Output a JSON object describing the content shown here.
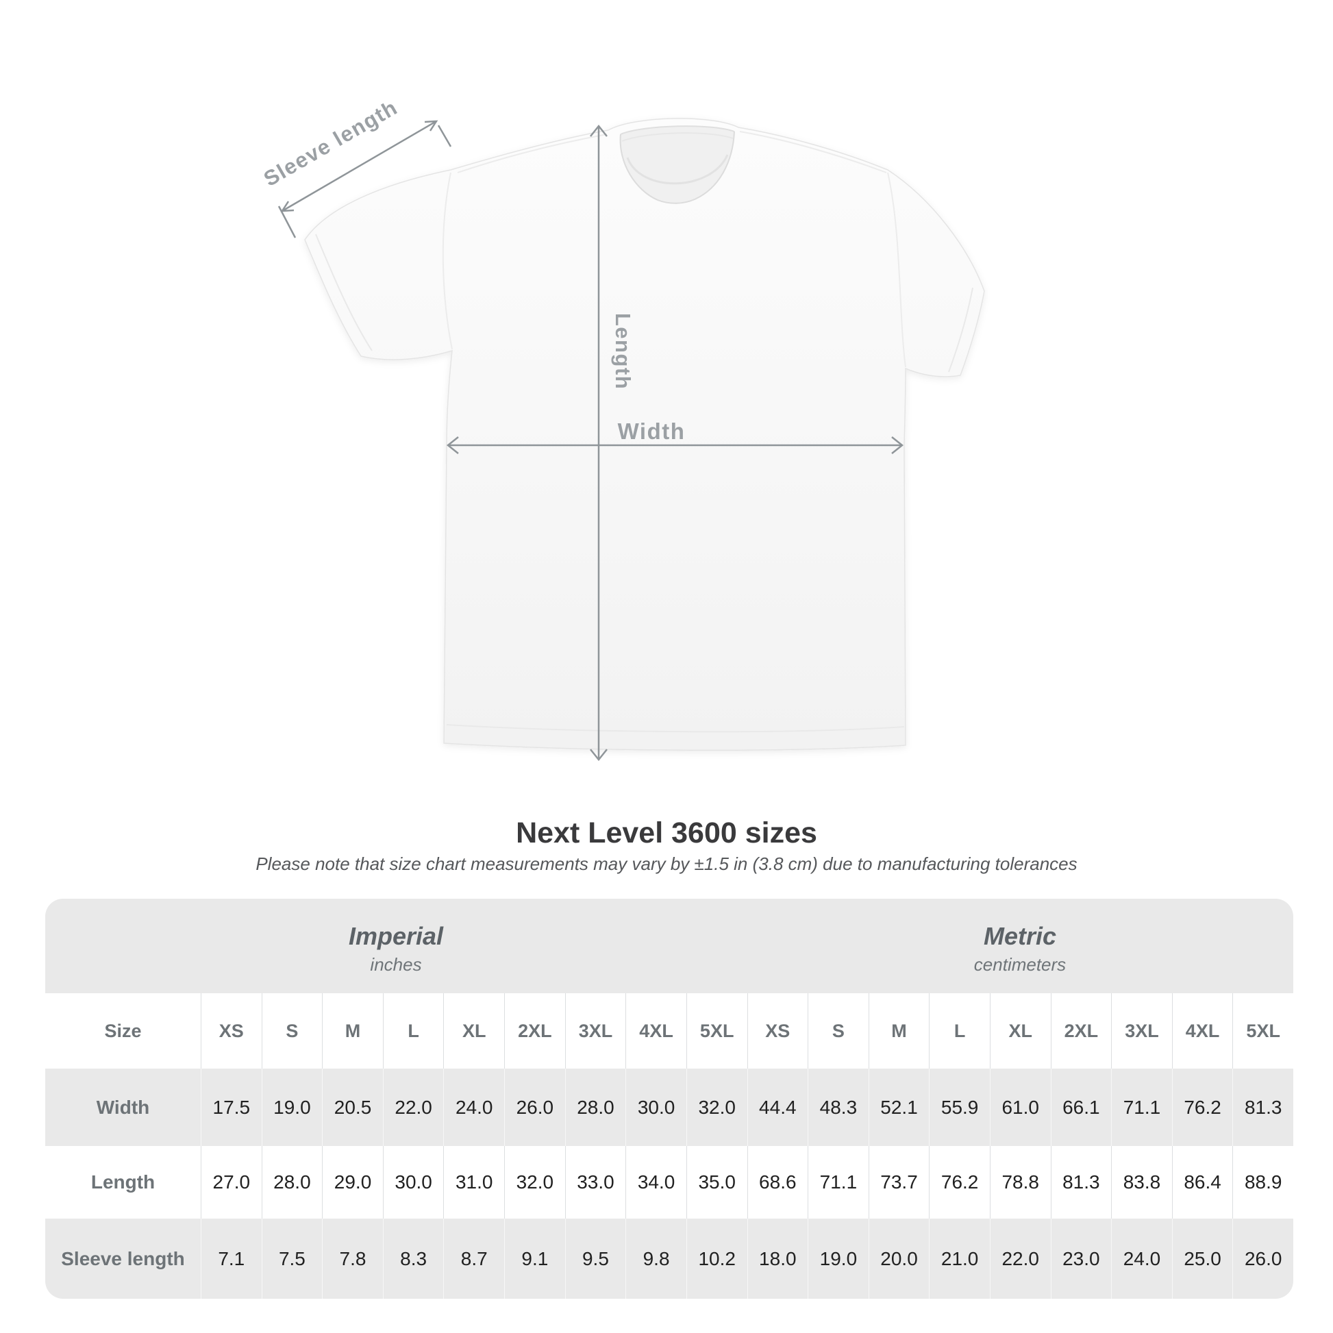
{
  "diagram": {
    "labels": {
      "sleeve_length": "Sleeve length",
      "length": "Length",
      "width": "Width"
    }
  },
  "title": "Next Level 3600 sizes",
  "subtitle": "Please note that size chart measurements may vary by ±1.5 in (3.8 cm) due to manufacturing tolerances",
  "size_chart": {
    "unit_groups": [
      {
        "label": "Imperial",
        "sublabel": "inches"
      },
      {
        "label": "Metric",
        "sublabel": "centimeters"
      }
    ],
    "header": {
      "row_label": "Size",
      "imperial_sizes": [
        "XS",
        "S",
        "M",
        "L",
        "XL",
        "2XL",
        "3XL",
        "4XL",
        "5XL"
      ],
      "metric_sizes": [
        "XS",
        "S",
        "M",
        "L",
        "XL",
        "2XL",
        "3XL",
        "4XL",
        "5XL"
      ]
    },
    "rows": [
      {
        "label": "Width",
        "imperial": [
          "17.5",
          "19.0",
          "20.5",
          "22.0",
          "24.0",
          "26.0",
          "28.0",
          "30.0",
          "32.0"
        ],
        "metric": [
          "44.4",
          "48.3",
          "52.1",
          "55.9",
          "61.0",
          "66.1",
          "71.1",
          "76.2",
          "81.3"
        ]
      },
      {
        "label": "Length",
        "imperial": [
          "27.0",
          "28.0",
          "29.0",
          "30.0",
          "31.0",
          "32.0",
          "33.0",
          "34.0",
          "35.0"
        ],
        "metric": [
          "68.6",
          "71.1",
          "73.7",
          "76.2",
          "78.8",
          "81.3",
          "83.8",
          "86.4",
          "88.9"
        ]
      },
      {
        "label": "Sleeve length",
        "imperial": [
          "7.1",
          "7.5",
          "7.8",
          "8.3",
          "8.7",
          "9.1",
          "9.5",
          "9.8",
          "10.2"
        ],
        "metric": [
          "18.0",
          "19.0",
          "20.0",
          "21.0",
          "22.0",
          "23.0",
          "24.0",
          "25.0",
          "26.0"
        ]
      }
    ]
  },
  "chart_data": {
    "type": "table",
    "title": "Next Level 3600 sizes",
    "columns": [
      "XS",
      "S",
      "M",
      "L",
      "XL",
      "2XL",
      "3XL",
      "4XL",
      "5XL"
    ],
    "series": [
      {
        "name": "Width (in)",
        "values": [
          17.5,
          19.0,
          20.5,
          22.0,
          24.0,
          26.0,
          28.0,
          30.0,
          32.0
        ]
      },
      {
        "name": "Length (in)",
        "values": [
          27.0,
          28.0,
          29.0,
          30.0,
          31.0,
          32.0,
          33.0,
          34.0,
          35.0
        ]
      },
      {
        "name": "Sleeve length (in)",
        "values": [
          7.1,
          7.5,
          7.8,
          8.3,
          8.7,
          9.1,
          9.5,
          9.8,
          10.2
        ]
      },
      {
        "name": "Width (cm)",
        "values": [
          44.4,
          48.3,
          52.1,
          55.9,
          61.0,
          66.1,
          71.1,
          76.2,
          81.3
        ]
      },
      {
        "name": "Length (cm)",
        "values": [
          68.6,
          71.1,
          73.7,
          76.2,
          78.8,
          81.3,
          83.8,
          86.4,
          88.9
        ]
      },
      {
        "name": "Sleeve length (cm)",
        "values": [
          18.0,
          19.0,
          20.0,
          21.0,
          22.0,
          23.0,
          24.0,
          25.0,
          26.0
        ]
      }
    ]
  },
  "colors": {
    "accent_text": "#9ba0a4",
    "line": "#8f9599",
    "title": "#3a3a3c",
    "subtitle": "#55575a",
    "value": "#212121",
    "label": "#6d7377",
    "stripe": "#e9e9e9",
    "divider_light": "#dcdee0",
    "divider_on_gray": "#f7f7f7",
    "unit_label": "#5c6267",
    "unit_sub": "#6e7478"
  }
}
